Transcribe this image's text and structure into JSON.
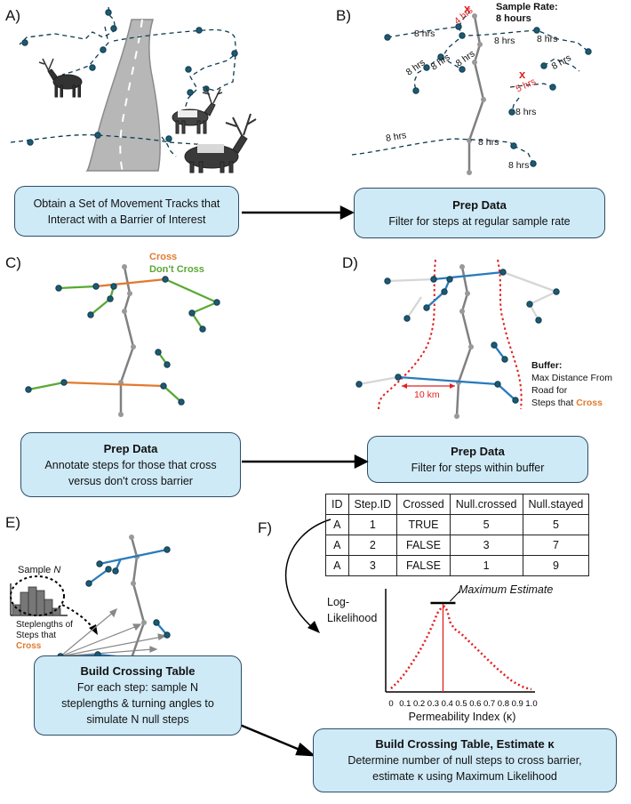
{
  "panels": {
    "a": {
      "label": "A)"
    },
    "b": {
      "label": "B)",
      "sample_rate_title": "Sample Rate:",
      "sample_rate_value": "8 hours"
    },
    "c": {
      "label": "C)",
      "legend_cross": "Cross",
      "legend_dont_cross": "Don't Cross"
    },
    "d": {
      "label": "D)",
      "buffer_title": "Buffer:",
      "buffer_line1": "Max Distance From",
      "buffer_line2": "Road for",
      "buffer_line3": "Steps that",
      "buffer_cross": "Cross",
      "distance": "10 km"
    },
    "e": {
      "label": "E)",
      "sample_label": "Sample",
      "sample_n": "N",
      "steplengths_line1": "Steplengths of",
      "steplengths_line2": "Steps that",
      "steplengths_cross": "Cross"
    },
    "f": {
      "label": "F)",
      "max_estimate": "Maximum Estimate",
      "ylabel_line1": "Log-",
      "ylabel_line2": "Likelihood",
      "xlabel": "Permeability Index (κ)"
    }
  },
  "step_labels": {
    "eight": "8 hrs",
    "four": "4 hrs",
    "five": "5 hrs",
    "reject": "x"
  },
  "boxes": {
    "b1": {
      "line1": "Obtain a Set of Movement Tracks that",
      "line2": "Interact with a Barrier of Interest"
    },
    "b2": {
      "title": "Prep Data",
      "line1": "Filter for steps at regular sample rate"
    },
    "b3": {
      "title": "Prep Data",
      "line1": "Annotate steps for those that cross",
      "line2": "versus don't cross barrier"
    },
    "b4": {
      "title": "Prep Data",
      "line1": "Filter for steps within buffer"
    },
    "b5": {
      "title": "Build Crossing Table",
      "line1": "For each step: sample N",
      "line2": "steplengths & turning angles to",
      "line3": "simulate N null steps"
    },
    "b6": {
      "title": "Build Crossing Table, Estimate κ",
      "line1": "Determine number of null steps to cross barrier,",
      "line2": "estimate κ using Maximum Likelihood"
    }
  },
  "table": {
    "headers": [
      "ID",
      "Step.ID",
      "Crossed",
      "Null.crossed",
      "Null.stayed"
    ],
    "rows": [
      [
        "A",
        "1",
        "TRUE",
        "5",
        "5"
      ],
      [
        "A",
        "2",
        "FALSE",
        "3",
        "7"
      ],
      [
        "A",
        "3",
        "FALSE",
        "1",
        "9"
      ]
    ]
  },
  "colors": {
    "cross": "#e07b30",
    "dont_cross": "#5aa833",
    "blue_step": "#2a7bbd",
    "track": "#0e3a4f",
    "road": "#888888",
    "box_fill": "#cfeaf7",
    "red": "#e02020"
  },
  "chart_data": {
    "type": "line",
    "xlabel": "Permeability Index (κ)",
    "ylabel": "Log-Likelihood",
    "xticks": [
      "0",
      "0.1",
      "0.2",
      "0.3",
      "0.4",
      "0.5",
      "0.6",
      "0.7",
      "0.8",
      "0.9",
      "1.0"
    ],
    "xlim": [
      0,
      1
    ],
    "annotation": "Maximum Estimate",
    "max_estimate_x": 0.37,
    "series": [
      {
        "x": [
          0,
          0.05,
          0.1,
          0.15,
          0.2,
          0.25,
          0.3,
          0.33,
          0.36,
          0.38,
          0.4,
          0.42,
          0.45,
          0.5,
          0.55,
          0.6,
          0.65,
          0.7,
          0.75,
          0.8,
          0.85,
          0.9,
          0.95,
          1.0
        ],
        "y": [
          0.02,
          0.1,
          0.2,
          0.32,
          0.45,
          0.6,
          0.78,
          0.9,
          0.97,
          0.98,
          0.93,
          0.8,
          0.72,
          0.66,
          0.58,
          0.5,
          0.42,
          0.34,
          0.26,
          0.19,
          0.12,
          0.07,
          0.03,
          0.01
        ]
      }
    ]
  }
}
